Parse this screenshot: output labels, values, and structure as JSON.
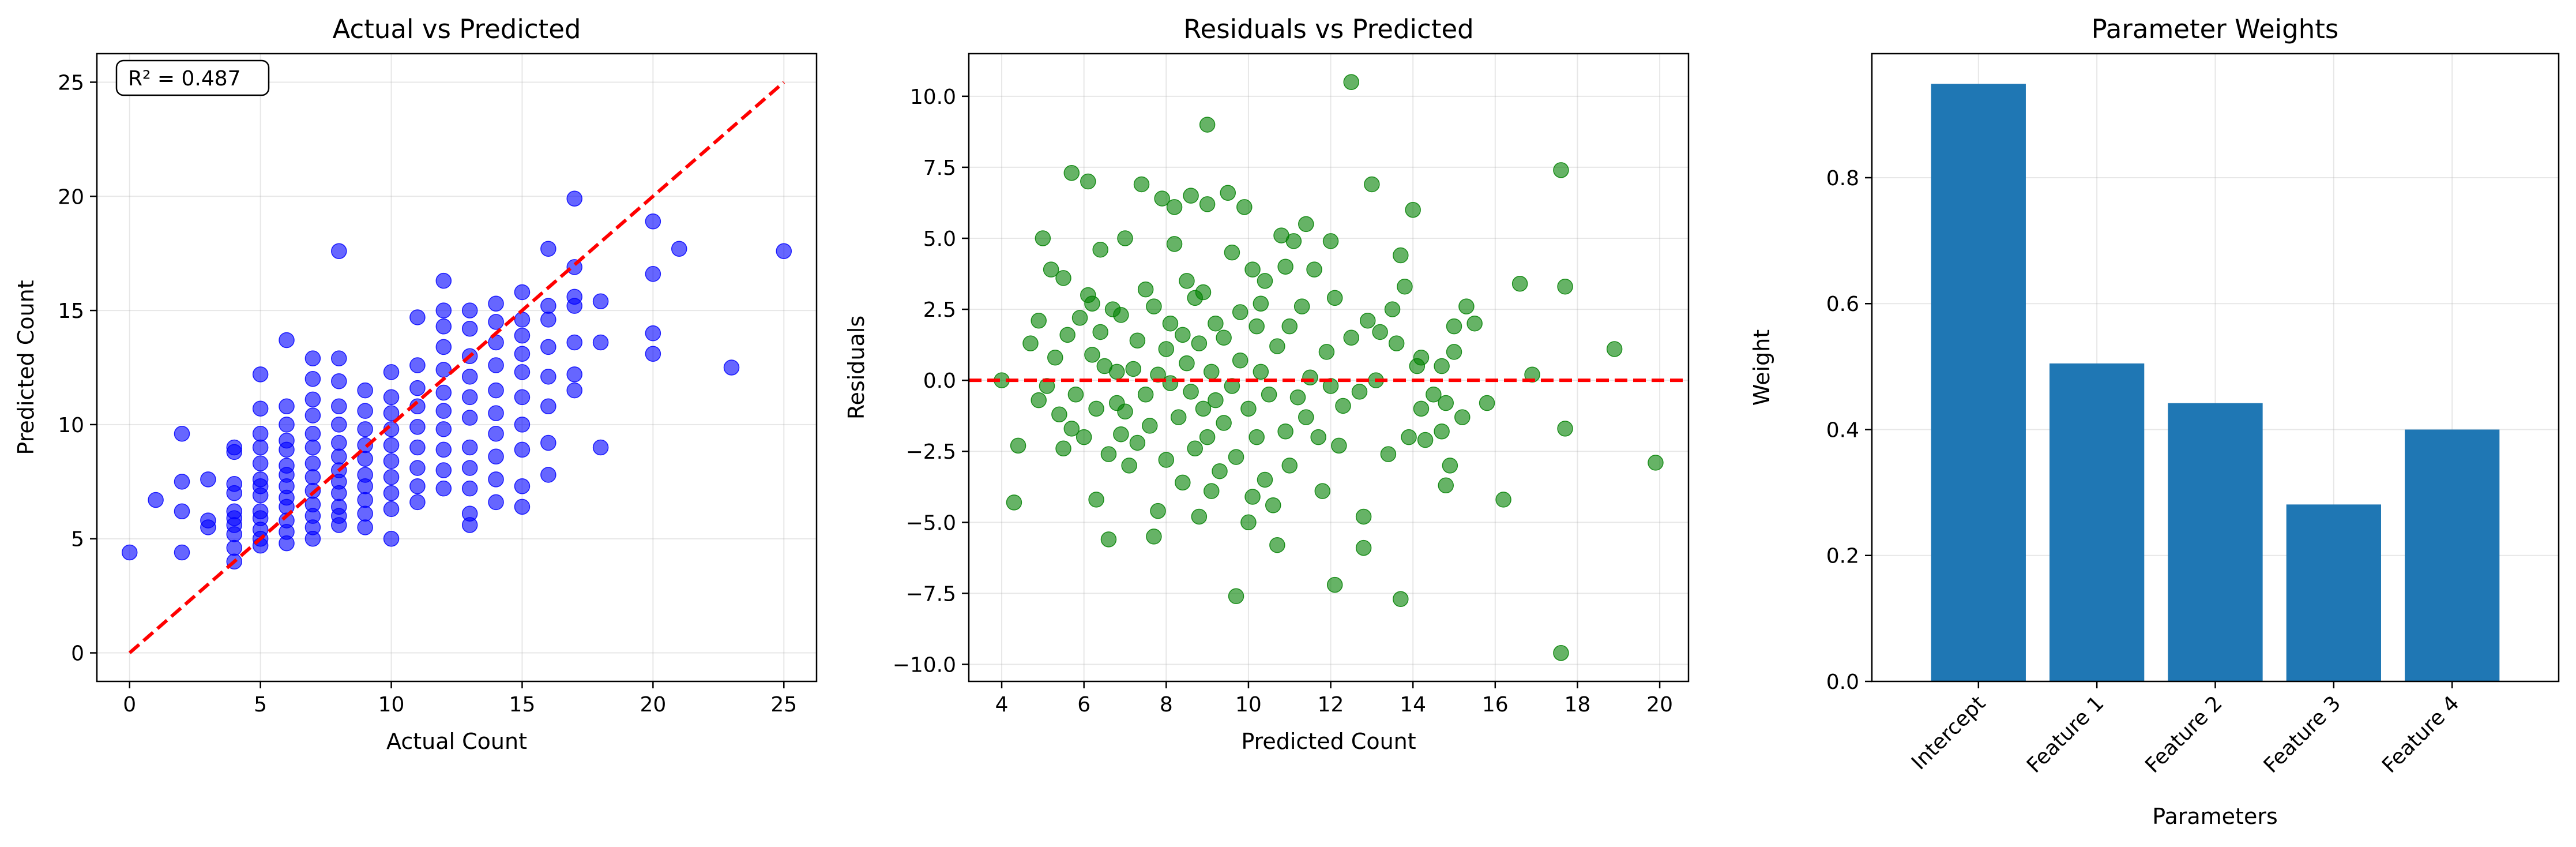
{
  "chart_data": [
    {
      "type": "scatter",
      "title": "Actual vs Predicted",
      "xlabel": "Actual Count",
      "ylabel": "Predicted Count",
      "xlim": [
        -1.25,
        26.25
      ],
      "ylim": [
        -1.25,
        26.25
      ],
      "xticks": [
        0,
        5,
        10,
        15,
        20,
        25
      ],
      "yticks": [
        0,
        5,
        10,
        15,
        20,
        25
      ],
      "grid": true,
      "point_color": "#0000ff",
      "reference_line": {
        "x": [
          0,
          25
        ],
        "y": [
          0,
          25
        ],
        "color": "#ff0000",
        "style": "dashed"
      },
      "annotation": "R² = 0.487",
      "points": [
        [
          0,
          4.4
        ],
        [
          1,
          6.7
        ],
        [
          2,
          9.6
        ],
        [
          2,
          7.5
        ],
        [
          2,
          6.2
        ],
        [
          2,
          4.4
        ],
        [
          3,
          5.8
        ],
        [
          3,
          5.5
        ],
        [
          3,
          7.6
        ],
        [
          4,
          4.0
        ],
        [
          4,
          4.6
        ],
        [
          4,
          5.2
        ],
        [
          4,
          5.6
        ],
        [
          4,
          5.9
        ],
        [
          4,
          6.2
        ],
        [
          4,
          7.0
        ],
        [
          4,
          7.4
        ],
        [
          4,
          8.8
        ],
        [
          4,
          9.0
        ],
        [
          5,
          4.7
        ],
        [
          5,
          5.0
        ],
        [
          5,
          5.4
        ],
        [
          5,
          5.9
        ],
        [
          5,
          6.2
        ],
        [
          5,
          6.9
        ],
        [
          5,
          7.3
        ],
        [
          5,
          7.6
        ],
        [
          5,
          8.3
        ],
        [
          5,
          9.0
        ],
        [
          5,
          9.6
        ],
        [
          5,
          10.7
        ],
        [
          5,
          12.2
        ],
        [
          6,
          4.8
        ],
        [
          6,
          5.3
        ],
        [
          6,
          5.8
        ],
        [
          6,
          6.4
        ],
        [
          6,
          6.8
        ],
        [
          6,
          7.3
        ],
        [
          6,
          7.8
        ],
        [
          6,
          8.2
        ],
        [
          6,
          8.9
        ],
        [
          6,
          9.3
        ],
        [
          6,
          10.0
        ],
        [
          6,
          10.8
        ],
        [
          6,
          13.7
        ],
        [
          7,
          5.0
        ],
        [
          7,
          5.5
        ],
        [
          7,
          6.0
        ],
        [
          7,
          6.5
        ],
        [
          7,
          7.1
        ],
        [
          7,
          7.7
        ],
        [
          7,
          8.3
        ],
        [
          7,
          9.0
        ],
        [
          7,
          9.6
        ],
        [
          7,
          10.4
        ],
        [
          7,
          11.1
        ],
        [
          7,
          12.0
        ],
        [
          7,
          12.9
        ],
        [
          8,
          5.6
        ],
        [
          8,
          6.0
        ],
        [
          8,
          6.4
        ],
        [
          8,
          7.0
        ],
        [
          8,
          7.5
        ],
        [
          8,
          8.0
        ],
        [
          8,
          8.6
        ],
        [
          8,
          9.2
        ],
        [
          8,
          10.0
        ],
        [
          8,
          10.8
        ],
        [
          8,
          11.9
        ],
        [
          8,
          12.9
        ],
        [
          8,
          17.6
        ],
        [
          9,
          5.5
        ],
        [
          9,
          6.1
        ],
        [
          9,
          6.7
        ],
        [
          9,
          7.3
        ],
        [
          9,
          7.8
        ],
        [
          9,
          8.5
        ],
        [
          9,
          9.1
        ],
        [
          9,
          9.8
        ],
        [
          9,
          10.6
        ],
        [
          9,
          11.5
        ],
        [
          10,
          5.0
        ],
        [
          10,
          6.3
        ],
        [
          10,
          7.0
        ],
        [
          10,
          7.7
        ],
        [
          10,
          8.4
        ],
        [
          10,
          9.1
        ],
        [
          10,
          9.8
        ],
        [
          10,
          10.5
        ],
        [
          10,
          11.2
        ],
        [
          10,
          12.3
        ],
        [
          11,
          6.6
        ],
        [
          11,
          7.3
        ],
        [
          11,
          8.1
        ],
        [
          11,
          9.0
        ],
        [
          11,
          9.9
        ],
        [
          11,
          10.8
        ],
        [
          11,
          11.6
        ],
        [
          11,
          12.6
        ],
        [
          11,
          14.7
        ],
        [
          12,
          7.2
        ],
        [
          12,
          8.0
        ],
        [
          12,
          8.9
        ],
        [
          12,
          9.8
        ],
        [
          12,
          10.6
        ],
        [
          12,
          11.4
        ],
        [
          12,
          12.4
        ],
        [
          12,
          13.4
        ],
        [
          12,
          14.3
        ],
        [
          12,
          15.0
        ],
        [
          12,
          16.3
        ],
        [
          13,
          5.6
        ],
        [
          13,
          6.1
        ],
        [
          13,
          7.2
        ],
        [
          13,
          8.1
        ],
        [
          13,
          9.0
        ],
        [
          13,
          10.3
        ],
        [
          13,
          11.2
        ],
        [
          13,
          12.1
        ],
        [
          13,
          13.0
        ],
        [
          13,
          14.2
        ],
        [
          13,
          15.0
        ],
        [
          14,
          6.6
        ],
        [
          14,
          7.6
        ],
        [
          14,
          8.6
        ],
        [
          14,
          9.6
        ],
        [
          14,
          10.5
        ],
        [
          14,
          11.5
        ],
        [
          14,
          12.6
        ],
        [
          14,
          13.6
        ],
        [
          14,
          14.5
        ],
        [
          14,
          15.3
        ],
        [
          15,
          6.4
        ],
        [
          15,
          7.3
        ],
        [
          15,
          8.9
        ],
        [
          15,
          10.0
        ],
        [
          15,
          11.2
        ],
        [
          15,
          12.3
        ],
        [
          15,
          13.1
        ],
        [
          15,
          13.9
        ],
        [
          15,
          14.6
        ],
        [
          15,
          15.8
        ],
        [
          16,
          7.8
        ],
        [
          16,
          9.2
        ],
        [
          16,
          10.8
        ],
        [
          16,
          12.1
        ],
        [
          16,
          13.4
        ],
        [
          16,
          14.6
        ],
        [
          16,
          15.2
        ],
        [
          16,
          17.7
        ],
        [
          17,
          11.5
        ],
        [
          17,
          12.2
        ],
        [
          17,
          13.6
        ],
        [
          17,
          15.2
        ],
        [
          17,
          15.6
        ],
        [
          17,
          16.9
        ],
        [
          17,
          19.9
        ],
        [
          18,
          9.0
        ],
        [
          18,
          13.6
        ],
        [
          18,
          15.4
        ],
        [
          20,
          13.1
        ],
        [
          20,
          14.0
        ],
        [
          20,
          16.6
        ],
        [
          20,
          18.9
        ],
        [
          21,
          17.7
        ],
        [
          23,
          12.5
        ],
        [
          25,
          17.6
        ]
      ]
    },
    {
      "type": "scatter",
      "title": "Residuals vs Predicted",
      "xlabel": "Predicted Count",
      "ylabel": "Residuals",
      "xlim": [
        3.2,
        20.7
      ],
      "ylim": [
        -10.6,
        11.5
      ],
      "xticks": [
        4,
        6,
        8,
        10,
        12,
        14,
        16,
        18,
        20
      ],
      "yticks": [
        -10.0,
        -7.5,
        -5.0,
        -2.5,
        0.0,
        2.5,
        5.0,
        7.5,
        10.0
      ],
      "ytick_labels": [
        "−10.0",
        "−7.5",
        "−5.0",
        "−2.5",
        "0.0",
        "2.5",
        "5.0",
        "7.5",
        "10.0"
      ],
      "grid": true,
      "point_color": "#008000",
      "reference_line": {
        "y": 0,
        "color": "#ff0000",
        "style": "dashed"
      },
      "points": [
        [
          4.0,
          0.0
        ],
        [
          4.3,
          -4.3
        ],
        [
          4.4,
          -2.3
        ],
        [
          4.7,
          1.3
        ],
        [
          4.9,
          2.1
        ],
        [
          4.9,
          -0.7
        ],
        [
          5.0,
          5.0
        ],
        [
          5.1,
          -0.2
        ],
        [
          5.2,
          3.9
        ],
        [
          5.3,
          0.8
        ],
        [
          5.4,
          -1.2
        ],
        [
          5.5,
          -2.4
        ],
        [
          5.5,
          3.6
        ],
        [
          5.6,
          1.6
        ],
        [
          5.7,
          -1.7
        ],
        [
          5.7,
          7.3
        ],
        [
          5.8,
          -0.5
        ],
        [
          5.9,
          2.2
        ],
        [
          6.0,
          -2.0
        ],
        [
          6.1,
          7.0
        ],
        [
          6.1,
          3.0
        ],
        [
          6.2,
          0.9
        ],
        [
          6.2,
          2.7
        ],
        [
          6.3,
          -4.2
        ],
        [
          6.3,
          -1.0
        ],
        [
          6.4,
          1.7
        ],
        [
          6.4,
          4.6
        ],
        [
          6.5,
          0.5
        ],
        [
          6.6,
          -2.6
        ],
        [
          6.6,
          -5.6
        ],
        [
          6.7,
          2.5
        ],
        [
          6.8,
          -0.8
        ],
        [
          6.8,
          0.3
        ],
        [
          6.9,
          -1.9
        ],
        [
          6.9,
          2.3
        ],
        [
          7.0,
          5.0
        ],
        [
          7.0,
          -1.1
        ],
        [
          7.1,
          -3.0
        ],
        [
          7.2,
          0.4
        ],
        [
          7.3,
          -2.2
        ],
        [
          7.3,
          1.4
        ],
        [
          7.4,
          6.9
        ],
        [
          7.5,
          -0.5
        ],
        [
          7.5,
          3.2
        ],
        [
          7.6,
          -1.6
        ],
        [
          7.7,
          2.6
        ],
        [
          7.7,
          -5.5
        ],
        [
          7.8,
          0.2
        ],
        [
          7.8,
          -4.6
        ],
        [
          7.9,
          6.4
        ],
        [
          8.0,
          -2.8
        ],
        [
          8.0,
          1.1
        ],
        [
          8.1,
          2.0
        ],
        [
          8.1,
          -0.1
        ],
        [
          8.2,
          6.1
        ],
        [
          8.2,
          4.8
        ],
        [
          8.3,
          -1.3
        ],
        [
          8.4,
          1.6
        ],
        [
          8.4,
          -3.6
        ],
        [
          8.5,
          3.5
        ],
        [
          8.5,
          0.6
        ],
        [
          8.6,
          -0.4
        ],
        [
          8.6,
          6.5
        ],
        [
          8.7,
          -2.4
        ],
        [
          8.7,
          2.9
        ],
        [
          8.8,
          1.3
        ],
        [
          8.8,
          -4.8
        ],
        [
          8.9,
          -1.0
        ],
        [
          8.9,
          3.1
        ],
        [
          9.0,
          9.0
        ],
        [
          9.0,
          -2.0
        ],
        [
          9.0,
          6.2
        ],
        [
          9.1,
          0.3
        ],
        [
          9.1,
          -3.9
        ],
        [
          9.2,
          2.0
        ],
        [
          9.2,
          -0.7
        ],
        [
          9.3,
          -3.2
        ],
        [
          9.4,
          1.5
        ],
        [
          9.4,
          -1.5
        ],
        [
          9.5,
          6.6
        ],
        [
          9.6,
          4.5
        ],
        [
          9.6,
          -0.2
        ],
        [
          9.7,
          -2.7
        ],
        [
          9.7,
          -7.6
        ],
        [
          9.8,
          0.7
        ],
        [
          9.8,
          2.4
        ],
        [
          9.9,
          6.1
        ],
        [
          10.0,
          -1.0
        ],
        [
          10.0,
          -5.0
        ],
        [
          10.1,
          3.9
        ],
        [
          10.1,
          -4.1
        ],
        [
          10.2,
          -2.0
        ],
        [
          10.2,
          1.9
        ],
        [
          10.3,
          2.7
        ],
        [
          10.3,
          0.3
        ],
        [
          10.4,
          -3.5
        ],
        [
          10.4,
          3.5
        ],
        [
          10.5,
          -0.5
        ],
        [
          10.6,
          -4.4
        ],
        [
          10.7,
          -5.8
        ],
        [
          10.7,
          1.2
        ],
        [
          10.8,
          5.1
        ],
        [
          10.9,
          -1.8
        ],
        [
          10.9,
          4.0
        ],
        [
          11.0,
          -3.0
        ],
        [
          11.0,
          1.9
        ],
        [
          11.1,
          4.9
        ],
        [
          11.2,
          -0.6
        ],
        [
          11.3,
          2.6
        ],
        [
          11.4,
          5.5
        ],
        [
          11.4,
          -1.3
        ],
        [
          11.5,
          0.1
        ],
        [
          11.6,
          3.9
        ],
        [
          11.7,
          -2.0
        ],
        [
          11.8,
          -3.9
        ],
        [
          11.9,
          1.0
        ],
        [
          12.0,
          -0.2
        ],
        [
          12.0,
          4.9
        ],
        [
          12.1,
          2.9
        ],
        [
          12.1,
          -7.2
        ],
        [
          12.2,
          -2.3
        ],
        [
          12.3,
          -0.9
        ],
        [
          12.5,
          10.5
        ],
        [
          12.5,
          1.5
        ],
        [
          12.7,
          -0.4
        ],
        [
          12.8,
          -5.9
        ],
        [
          12.8,
          -4.8
        ],
        [
          12.9,
          2.1
        ],
        [
          13.0,
          6.9
        ],
        [
          13.1,
          0.0
        ],
        [
          13.2,
          1.7
        ],
        [
          13.4,
          -2.6
        ],
        [
          13.5,
          2.5
        ],
        [
          13.6,
          1.3
        ],
        [
          13.7,
          4.4
        ],
        [
          13.7,
          -7.7
        ],
        [
          13.8,
          3.3
        ],
        [
          13.9,
          -2.0
        ],
        [
          14.0,
          6.0
        ],
        [
          14.1,
          0.5
        ],
        [
          14.2,
          0.8
        ],
        [
          14.2,
          -1.0
        ],
        [
          14.3,
          -2.1
        ],
        [
          14.5,
          -0.5
        ],
        [
          14.7,
          -1.8
        ],
        [
          14.7,
          0.5
        ],
        [
          14.8,
          -3.7
        ],
        [
          14.8,
          -0.8
        ],
        [
          14.9,
          -3.0
        ],
        [
          15.0,
          1.0
        ],
        [
          15.0,
          1.9
        ],
        [
          15.2,
          -1.3
        ],
        [
          15.3,
          2.6
        ],
        [
          15.5,
          2.0
        ],
        [
          15.8,
          -0.8
        ],
        [
          16.2,
          -4.2
        ],
        [
          16.6,
          3.4
        ],
        [
          16.9,
          0.2
        ],
        [
          17.6,
          7.4
        ],
        [
          17.6,
          -9.6
        ],
        [
          17.7,
          3.3
        ],
        [
          17.7,
          -1.7
        ],
        [
          18.9,
          1.1
        ],
        [
          19.9,
          -2.9
        ]
      ]
    },
    {
      "type": "bar",
      "title": "Parameter Weights",
      "xlabel": "Parameters",
      "ylabel": "Weight",
      "categories": [
        "Intercept",
        "Feature 1",
        "Feature 2",
        "Feature 3",
        "Feature 4"
      ],
      "values": [
        0.949,
        0.505,
        0.442,
        0.281,
        0.4
      ],
      "ylim": [
        0,
        0.997
      ],
      "yticks": [
        0.0,
        0.2,
        0.4,
        0.6,
        0.8
      ],
      "grid": true,
      "bar_color": "#1f77b4"
    }
  ]
}
